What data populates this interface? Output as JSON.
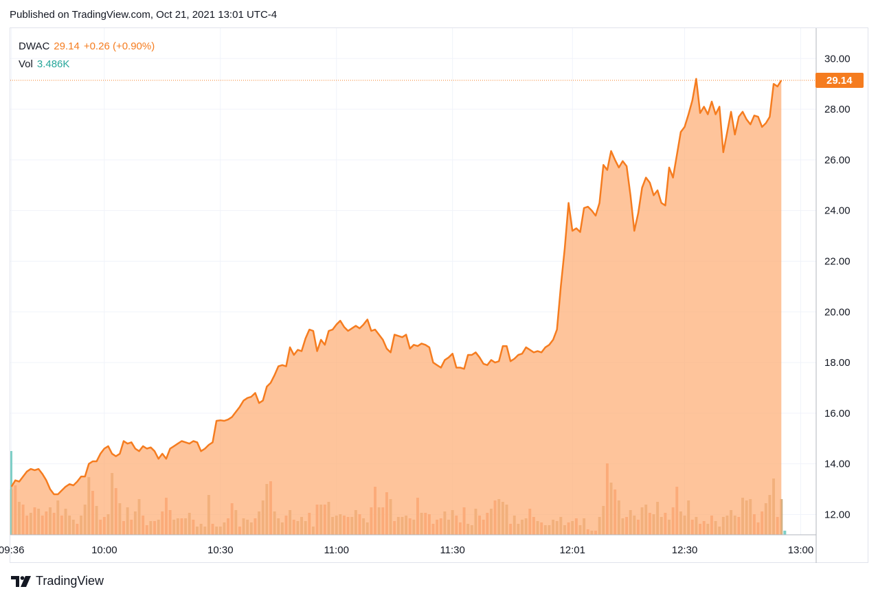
{
  "header": {
    "published": "Published on TradingView.com, Oct 21, 2021 13:01 UTC-4"
  },
  "legend": {
    "symbol": "DWAC",
    "price": "29.14",
    "change": "+0.26 (+0.90%)",
    "vol_label": "Vol",
    "vol_value": "3.486K"
  },
  "price_tag": "29.14",
  "footer": {
    "brand": "TradingView",
    "logo_icon": "tradingview-logo-icon"
  },
  "colors": {
    "line": "#f57c1f",
    "area": "#fdb07a",
    "vol_up": "#c8a16c",
    "vol_down": "#f28b62",
    "teal": "#26a69a"
  },
  "chart_data": {
    "type": "area",
    "symbol": "DWAC",
    "ylim": [
      11.2,
      31.2
    ],
    "y_ticks": [
      "12.00",
      "14.00",
      "16.00",
      "18.00",
      "20.00",
      "22.00",
      "24.00",
      "26.00",
      "28.00",
      "30.00"
    ],
    "x_ticks": [
      {
        "label": "09:36",
        "t": 0
      },
      {
        "label": "10:00",
        "t": 24
      },
      {
        "label": "10:30",
        "t": 54
      },
      {
        "label": "11:00",
        "t": 84
      },
      {
        "label": "11:30",
        "t": 114
      },
      {
        "label": "12:01",
        "t": 145
      },
      {
        "label": "12:30",
        "t": 174
      },
      {
        "label": "13:00",
        "t": 204
      }
    ],
    "time_range": [
      -0.3,
      208
    ],
    "last_price": 29.14,
    "series": [
      {
        "type": "area",
        "points": [
          [
            0,
            13.1
          ],
          [
            1,
            13.35
          ],
          [
            2,
            13.3
          ],
          [
            3,
            13.5
          ],
          [
            4,
            13.7
          ],
          [
            5,
            13.8
          ],
          [
            6,
            13.75
          ],
          [
            7,
            13.8
          ],
          [
            8,
            13.6
          ],
          [
            9,
            13.35
          ],
          [
            10,
            13.0
          ],
          [
            11,
            12.8
          ],
          [
            12,
            12.8
          ],
          [
            13,
            12.95
          ],
          [
            14,
            13.1
          ],
          [
            15,
            13.2
          ],
          [
            16,
            13.15
          ],
          [
            17,
            13.3
          ],
          [
            18,
            13.5
          ],
          [
            19,
            13.5
          ],
          [
            20,
            14.0
          ],
          [
            21,
            14.1
          ],
          [
            22,
            14.1
          ],
          [
            23,
            14.4
          ],
          [
            24,
            14.6
          ],
          [
            25,
            14.7
          ],
          [
            26,
            14.4
          ],
          [
            27,
            14.3
          ],
          [
            28,
            14.4
          ],
          [
            29,
            14.9
          ],
          [
            30,
            14.8
          ],
          [
            31,
            14.85
          ],
          [
            32,
            14.6
          ],
          [
            33,
            14.5
          ],
          [
            34,
            14.7
          ],
          [
            35,
            14.6
          ],
          [
            36,
            14.65
          ],
          [
            37,
            14.5
          ],
          [
            38,
            14.2
          ],
          [
            39,
            14.4
          ],
          [
            40,
            14.2
          ],
          [
            41,
            14.6
          ],
          [
            42,
            14.7
          ],
          [
            43,
            14.8
          ],
          [
            44,
            14.9
          ],
          [
            45,
            14.85
          ],
          [
            46,
            14.8
          ],
          [
            47,
            14.9
          ],
          [
            48,
            14.85
          ],
          [
            49,
            14.5
          ],
          [
            50,
            14.6
          ],
          [
            51,
            14.75
          ],
          [
            52,
            14.85
          ],
          [
            53,
            15.7
          ],
          [
            54,
            15.72
          ],
          [
            55,
            15.7
          ],
          [
            56,
            15.75
          ],
          [
            57,
            15.85
          ],
          [
            58,
            16.05
          ],
          [
            59,
            16.25
          ],
          [
            60,
            16.5
          ],
          [
            61,
            16.6
          ],
          [
            62,
            16.65
          ],
          [
            63,
            16.8
          ],
          [
            64,
            16.4
          ],
          [
            65,
            16.5
          ],
          [
            66,
            17.05
          ],
          [
            67,
            17.2
          ],
          [
            68,
            17.5
          ],
          [
            69,
            17.85
          ],
          [
            70,
            17.9
          ],
          [
            71,
            17.85
          ],
          [
            72,
            18.6
          ],
          [
            73,
            18.3
          ],
          [
            74,
            18.5
          ],
          [
            75,
            18.45
          ],
          [
            76,
            18.95
          ],
          [
            77,
            19.3
          ],
          [
            78,
            19.25
          ],
          [
            79,
            18.45
          ],
          [
            80,
            18.9
          ],
          [
            81,
            18.7
          ],
          [
            82,
            19.25
          ],
          [
            83,
            19.3
          ],
          [
            84,
            19.5
          ],
          [
            85,
            19.65
          ],
          [
            86,
            19.4
          ],
          [
            87,
            19.25
          ],
          [
            88,
            19.35
          ],
          [
            89,
            19.45
          ],
          [
            90,
            19.35
          ],
          [
            91,
            19.5
          ],
          [
            92,
            19.7
          ],
          [
            93,
            19.25
          ],
          [
            94,
            19.3
          ],
          [
            95,
            19.1
          ],
          [
            96,
            18.9
          ],
          [
            97,
            18.55
          ],
          [
            98,
            18.4
          ],
          [
            99,
            19.1
          ],
          [
            100,
            19.05
          ],
          [
            101,
            19.0
          ],
          [
            102,
            19.1
          ],
          [
            103,
            18.55
          ],
          [
            104,
            18.7
          ],
          [
            105,
            18.65
          ],
          [
            106,
            18.75
          ],
          [
            107,
            18.7
          ],
          [
            108,
            18.6
          ],
          [
            109,
            18.0
          ],
          [
            110,
            17.9
          ],
          [
            111,
            17.8
          ],
          [
            112,
            18.1
          ],
          [
            113,
            18.2
          ],
          [
            114,
            18.35
          ],
          [
            115,
            17.8
          ],
          [
            116,
            17.8
          ],
          [
            117,
            17.75
          ],
          [
            118,
            18.3
          ],
          [
            119,
            18.3
          ],
          [
            120,
            18.4
          ],
          [
            121,
            18.2
          ],
          [
            122,
            17.95
          ],
          [
            123,
            17.9
          ],
          [
            124,
            18.1
          ],
          [
            125,
            18.0
          ],
          [
            126,
            18.05
          ],
          [
            127,
            18.65
          ],
          [
            128,
            18.65
          ],
          [
            129,
            18.05
          ],
          [
            130,
            18.15
          ],
          [
            131,
            18.3
          ],
          [
            132,
            18.35
          ],
          [
            133,
            18.6
          ],
          [
            134,
            18.5
          ],
          [
            135,
            18.4
          ],
          [
            136,
            18.45
          ],
          [
            137,
            18.4
          ],
          [
            138,
            18.6
          ],
          [
            139,
            18.7
          ],
          [
            140,
            18.9
          ],
          [
            141,
            19.3
          ],
          [
            142,
            21.0
          ],
          [
            143,
            22.5
          ],
          [
            144,
            24.3
          ],
          [
            145,
            23.2
          ],
          [
            146,
            23.3
          ],
          [
            147,
            23.15
          ],
          [
            148,
            24.1
          ],
          [
            149,
            24.15
          ],
          [
            150,
            24.0
          ],
          [
            151,
            23.8
          ],
          [
            152,
            24.3
          ],
          [
            153,
            25.8
          ],
          [
            154,
            25.6
          ],
          [
            155,
            26.35
          ],
          [
            156,
            26.0
          ],
          [
            157,
            25.7
          ],
          [
            158,
            25.95
          ],
          [
            159,
            25.75
          ],
          [
            160,
            24.6
          ],
          [
            161,
            23.2
          ],
          [
            162,
            23.9
          ],
          [
            163,
            24.9
          ],
          [
            164,
            25.3
          ],
          [
            165,
            25.1
          ],
          [
            166,
            24.6
          ],
          [
            167,
            24.8
          ],
          [
            168,
            24.3
          ],
          [
            169,
            24.2
          ],
          [
            170,
            25.7
          ],
          [
            171,
            25.3
          ],
          [
            172,
            26.2
          ],
          [
            173,
            27.1
          ],
          [
            174,
            27.3
          ],
          [
            175,
            27.8
          ],
          [
            176,
            28.35
          ],
          [
            177,
            29.2
          ],
          [
            178,
            27.85
          ],
          [
            179,
            28.1
          ],
          [
            180,
            27.8
          ],
          [
            181,
            28.3
          ],
          [
            182,
            27.8
          ],
          [
            183,
            28.1
          ],
          [
            184,
            26.3
          ],
          [
            185,
            27.1
          ],
          [
            186,
            27.9
          ],
          [
            187,
            27.0
          ],
          [
            188,
            27.7
          ],
          [
            189,
            27.9
          ],
          [
            190,
            27.6
          ],
          [
            191,
            27.4
          ],
          [
            192,
            27.75
          ],
          [
            193,
            27.7
          ],
          [
            194,
            27.3
          ],
          [
            195,
            27.45
          ],
          [
            196,
            27.7
          ],
          [
            197,
            29.0
          ],
          [
            198,
            28.9
          ],
          [
            199,
            29.14
          ]
        ]
      }
    ],
    "volume_levels": [
      0.33,
      0.36,
      0.24,
      0.22,
      0.14,
      0.16,
      0.2,
      0.19,
      0.14,
      0.17,
      0.2,
      0.16,
      0.25,
      0.14,
      0.19,
      0.14,
      0.11,
      0.08,
      0.14,
      0.22,
      0.42,
      0.32,
      0.21,
      0.11,
      0.13,
      0.15,
      0.45,
      0.34,
      0.23,
      0.1,
      0.2,
      0.11,
      0.17,
      0.26,
      0.14,
      0.07,
      0.1,
      0.1,
      0.11,
      0.17,
      0.27,
      0.18,
      0.11,
      0.12,
      0.12,
      0.12,
      0.16,
      0.11,
      0.06,
      0.08,
      0.06,
      0.29,
      0.08,
      0.06,
      0.06,
      0.09,
      0.12,
      0.23,
      0.18,
      0.06,
      0.12,
      0.11,
      0.09,
      0.12,
      0.17,
      0.25,
      0.37,
      0.39,
      0.17,
      0.12,
      0.09,
      0.14,
      0.18,
      0.11,
      0.1,
      0.13,
      0.1,
      0.16,
      0.06,
      0.22,
      0.22,
      0.22,
      0.24,
      0.13,
      0.14,
      0.15,
      0.14,
      0.13,
      0.13,
      0.18,
      0.15,
      0.12,
      0.09,
      0.2,
      0.35,
      0.2,
      0.2,
      0.31,
      0.26,
      0.1,
      0.13,
      0.13,
      0.14,
      0.12,
      0.11,
      0.27,
      0.16,
      0.16,
      0.15,
      0.08,
      0.11,
      0.12,
      0.17,
      0.11,
      0.18,
      0.14,
      0.09,
      0.2,
      0.08,
      0.07,
      0.19,
      0.14,
      0.11,
      0.16,
      0.19,
      0.25,
      0.26,
      0.24,
      0.22,
      0.08,
      0.14,
      0.08,
      0.11,
      0.12,
      0.19,
      0.13,
      0.1,
      0.09,
      0.07,
      0.07,
      0.11,
      0.1,
      0.13,
      0.07,
      0.09,
      0.1,
      0.12,
      0.07,
      0.12,
      0.04,
      0.03,
      0.03,
      0.13,
      0.21,
      0.52,
      0.38,
      0.33,
      0.25,
      0.12,
      0.13,
      0.18,
      0.14,
      0.11,
      0.2,
      0.22,
      0.16,
      0.15,
      0.24,
      0.13,
      0.16,
      0.11,
      0.2,
      0.35,
      0.17,
      0.14,
      0.25,
      0.11,
      0.13,
      0.08,
      0.1,
      0.08,
      0.14,
      0.1,
      0.06,
      0.13,
      0.14,
      0.18,
      0.14,
      0.13,
      0.27,
      0.25,
      0.26,
      0.15,
      0.09,
      0.17,
      0.23,
      0.29,
      0.41,
      0.13,
      0.26
    ],
    "volume_up_flags": [
      1,
      0,
      1,
      0,
      0,
      1,
      0,
      1,
      0,
      0,
      1,
      0,
      1,
      0,
      1,
      1,
      1,
      0,
      1,
      1,
      1,
      0,
      1,
      0,
      0,
      1,
      1,
      0,
      1,
      0,
      1,
      0,
      1,
      1,
      0,
      0,
      1,
      0,
      1,
      0,
      0,
      0,
      1,
      1,
      0,
      1,
      1,
      0,
      1,
      1,
      1,
      1,
      0,
      1,
      1,
      1,
      0,
      0,
      1,
      0,
      1,
      1,
      1,
      0,
      1,
      1,
      1,
      0,
      1,
      1,
      1,
      0,
      1,
      0,
      1,
      1,
      1,
      0,
      1,
      0,
      1,
      0,
      1,
      1,
      1,
      1,
      0,
      0,
      1,
      1,
      0,
      1,
      1,
      0,
      0,
      1,
      0,
      0,
      1,
      0,
      1,
      1,
      1,
      0,
      1,
      0,
      1,
      0,
      0,
      0,
      0,
      0,
      1,
      1,
      1,
      0,
      0,
      0,
      1,
      1,
      1,
      0,
      0,
      0,
      1,
      0,
      1,
      1,
      1,
      0,
      1,
      1,
      1,
      1,
      0,
      0,
      1,
      0,
      1,
      1,
      1,
      1,
      1,
      1,
      0,
      1,
      0,
      1,
      1,
      0,
      1,
      0,
      1,
      1,
      0,
      1,
      0,
      1,
      1,
      0,
      1,
      1,
      0,
      1,
      1,
      0,
      1,
      1,
      1,
      0,
      1,
      0,
      0,
      1,
      1,
      1,
      0,
      1,
      0,
      0,
      1,
      0,
      1,
      1,
      1,
      1,
      1,
      1,
      0,
      1,
      1,
      1,
      0,
      0,
      0,
      1,
      1,
      1,
      0,
      1
    ],
    "volume_last_level": 0.6
  }
}
